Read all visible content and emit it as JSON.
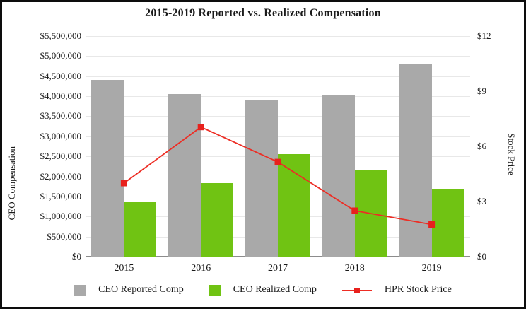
{
  "title": "2015-2019 Reported vs. Realized Compensation",
  "left_axis": {
    "label": "CEO Compensation",
    "max": 5500000,
    "step": 500000,
    "ticks": [
      "$5,500,000",
      "$5,000,000",
      "$4,500,000",
      "$4,000,000",
      "$3,500,000",
      "$3,000,000",
      "$2,500,000",
      "$2,000,000",
      "$1,500,000",
      "$1,000,000",
      "$500,000",
      "$0"
    ]
  },
  "right_axis": {
    "label": "Stock Price",
    "max": 12,
    "step": 3,
    "ticks": [
      "$12",
      "$9",
      "$6",
      "$3",
      "$0"
    ]
  },
  "chart_data": {
    "type": "bar+line combo",
    "title": "2015-2019 Reported vs. Realized Compensation",
    "categories": [
      "2015",
      "2016",
      "2017",
      "2018",
      "2019"
    ],
    "series": [
      {
        "name": "CEO Reported Comp",
        "type": "bar",
        "axis": "left",
        "color": "#a9a9a9",
        "values": [
          4400000,
          4050000,
          3900000,
          4025000,
          4800000
        ]
      },
      {
        "name": "CEO Realized Comp",
        "type": "bar",
        "axis": "left",
        "color": "#70c313",
        "values": [
          1375000,
          1825000,
          2550000,
          2175000,
          1700000
        ]
      },
      {
        "name": "HPR Stock Price",
        "type": "line",
        "axis": "right",
        "color": "#ed2d24",
        "values": [
          4.0,
          7.05,
          5.15,
          2.5,
          1.75
        ]
      }
    ],
    "ylabel_left": "CEO Compensation",
    "ylabel_right": "Stock Price",
    "ylim_left": [
      0,
      5500000
    ],
    "ylim_right": [
      0,
      12
    ],
    "grid": true,
    "legend_position": "bottom"
  },
  "colors": {
    "gridline": "#e8e8e8",
    "axis_line": "#8c8c8c",
    "marker": "#e8211d"
  }
}
